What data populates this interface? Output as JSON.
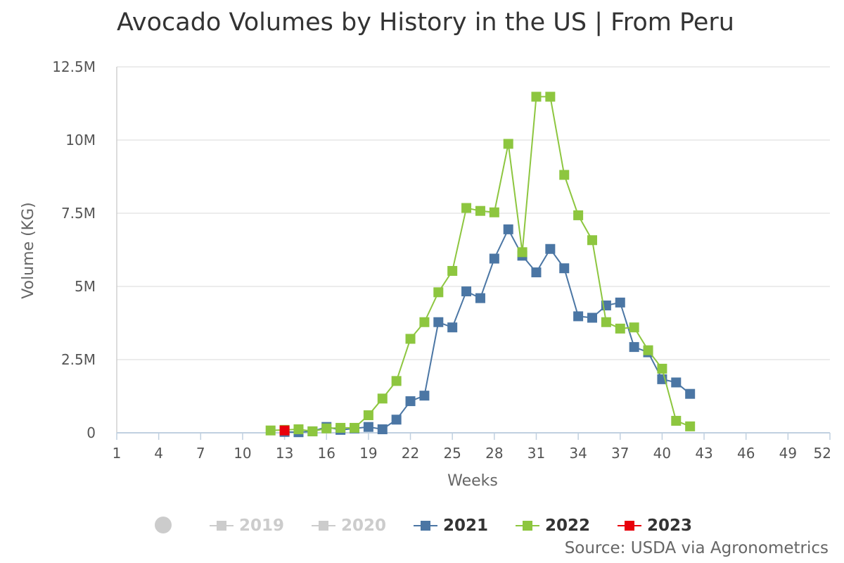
{
  "chart_data": {
    "type": "line",
    "title": "Avocado Volumes by History in the US | From Peru",
    "xlabel": "Weeks",
    "ylabel": "Volume (KG)",
    "xlim": [
      1,
      52
    ],
    "ylim": [
      0,
      12500000
    ],
    "x_ticks": [
      1,
      4,
      7,
      10,
      13,
      16,
      19,
      22,
      25,
      28,
      31,
      34,
      37,
      40,
      43,
      46,
      49,
      52
    ],
    "y_ticks": [
      0,
      2500000,
      5000000,
      7500000,
      10000000,
      12500000
    ],
    "y_tick_labels": [
      "0",
      "2.5M",
      "5M",
      "7.5M",
      "10M",
      "12.5M"
    ],
    "grid": true,
    "legend_position": "bottom",
    "series": [
      {
        "name": "2019",
        "color": "#cccccc",
        "hidden": true,
        "x": [],
        "values": []
      },
      {
        "name": "2020",
        "color": "#cccccc",
        "hidden": true,
        "x": [],
        "values": []
      },
      {
        "name": "2021",
        "color": "#4b76a4",
        "hidden": false,
        "x": [
          13,
          14,
          15,
          16,
          17,
          18,
          19,
          20,
          21,
          22,
          23,
          24,
          25,
          26,
          27,
          28,
          29,
          30,
          31,
          32,
          33,
          34,
          35,
          36,
          37,
          38,
          39,
          40,
          41,
          42
        ],
        "values": [
          30000,
          20000,
          50000,
          200000,
          100000,
          150000,
          200000,
          120000,
          450000,
          1080000,
          1270000,
          3780000,
          3600000,
          4830000,
          4600000,
          5950000,
          6950000,
          6050000,
          5480000,
          6280000,
          5620000,
          3980000,
          3930000,
          4350000,
          4450000,
          2930000,
          2750000,
          1830000,
          1720000,
          1330000
        ]
      },
      {
        "name": "2022",
        "color": "#8dc63f",
        "hidden": false,
        "x": [
          12,
          13,
          14,
          15,
          16,
          17,
          18,
          19,
          20,
          21,
          22,
          23,
          24,
          25,
          26,
          27,
          28,
          29,
          30,
          31,
          32,
          33,
          34,
          35,
          36,
          37,
          38,
          39,
          40,
          41,
          42
        ],
        "values": [
          80000,
          100000,
          120000,
          50000,
          150000,
          170000,
          170000,
          600000,
          1170000,
          1770000,
          3210000,
          3780000,
          4800000,
          5530000,
          7680000,
          7580000,
          7530000,
          9870000,
          6170000,
          11480000,
          11480000,
          8810000,
          7430000,
          6580000,
          3780000,
          3560000,
          3600000,
          2820000,
          2190000,
          410000,
          220000
        ]
      },
      {
        "name": "2023",
        "color": "#e8000b",
        "hidden": false,
        "x": [
          13
        ],
        "values": [
          80000
        ]
      }
    ]
  },
  "source": "Source: USDA via Agronometrics"
}
